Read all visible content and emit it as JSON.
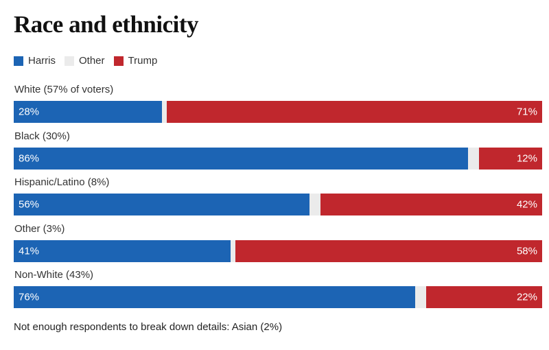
{
  "title": "Race and ethnicity",
  "legend": [
    {
      "label": "Harris",
      "color": "#1c64b4"
    },
    {
      "label": "Other",
      "color": "#ebebeb"
    },
    {
      "label": "Trump",
      "color": "#c0272d"
    }
  ],
  "footnote": "Not enough respondents to break down details: Asian (2%)",
  "chart_data": {
    "type": "bar",
    "orientation": "horizontal-stacked",
    "title": "Race and ethnicity",
    "xlim": [
      0,
      100
    ],
    "grid": false,
    "legend_position": "top-left",
    "categories": [
      "White (57% of voters)",
      "Black (30%)",
      "Hispanic/Latino (8%)",
      "Other (3%)",
      "Non-White (43%)"
    ],
    "series": [
      {
        "name": "Harris",
        "color": "#1c64b4",
        "values": [
          28,
          86,
          56,
          41,
          76
        ],
        "labels": [
          "28%",
          "86%",
          "56%",
          "41%",
          "76%"
        ]
      },
      {
        "name": "Other",
        "color": "#ebebeb",
        "values": [
          1,
          2,
          2,
          1,
          2
        ]
      },
      {
        "name": "Trump",
        "color": "#c0272d",
        "values": [
          71,
          12,
          42,
          58,
          22
        ],
        "labels": [
          "71%",
          "12%",
          "42%",
          "58%",
          "22%"
        ]
      }
    ]
  }
}
